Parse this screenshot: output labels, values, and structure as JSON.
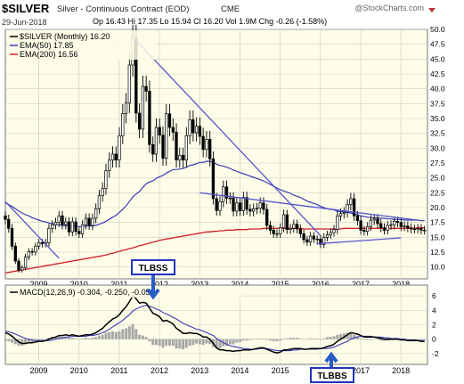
{
  "header": {
    "symbol": "$SILVER",
    "name": "Silver - Continuous Contract (EOD)",
    "exchange": "CME",
    "watermark": "@StockCharts.com",
    "date": "29-Jun-2018",
    "quote": "Op 16.43 Hi 17.35 Lo 15.94 Cl 16.20 Vol 1.9M Chg -0.26 (-1.58%)"
  },
  "legend": {
    "price": "$SILVER (Monthly) 16.20",
    "ema50": "EMA(50) 17.85",
    "ema200": "EMA(200) 16.56",
    "macd": "MACD(12,26,9) -0.304, -0.250, -0.053"
  },
  "annotations": {
    "top": "TLBSS",
    "bottom": "TLBBS"
  },
  "colors": {
    "panel_bg": "#fdfde8",
    "grid": "#cfcfcf",
    "candle": "#000000",
    "ema50": "#3b3bb8",
    "ema200": "#d0202a",
    "trendline": "#5555cc",
    "hist": "#a8a8a8",
    "label_box": "#2233bb"
  },
  "chart_data": [
    {
      "type": "candlestick",
      "x_axis": [
        "2009",
        "2010",
        "2011",
        "2012",
        "2013",
        "2014",
        "2015",
        "2016",
        "2017",
        "2018"
      ],
      "y_ticks": [
        "10.0",
        "12.5",
        "15.0",
        "17.5",
        "20.0",
        "22.5",
        "25.0",
        "27.5",
        "30.0",
        "32.5",
        "35.0",
        "37.5",
        "40.0",
        "42.5",
        "45.0",
        "47.5",
        "50.0"
      ],
      "x_start": 2008.17,
      "ylim": [
        8,
        50
      ],
      "close": [
        18.0,
        16.5,
        13.5,
        11.0,
        9.5,
        9.9,
        11.7,
        12.6,
        12.5,
        13.5,
        14.1,
        13.9,
        14.1,
        16.5,
        17.1,
        17.5,
        18.6,
        17.1,
        17.6,
        15.9,
        17.6,
        16.0,
        15.6,
        17.1,
        18.2,
        17.0,
        18.2,
        19.8,
        22.0,
        23.2,
        26.2,
        28.0,
        29.0,
        28.0,
        32.1,
        35.8,
        37.6,
        44.0,
        48.6,
        35.9,
        33.2,
        40.4,
        39.6,
        30.6,
        29.0,
        33.5,
        32.2,
        28.3,
        35.8,
        33.5,
        32.7,
        28.0,
        28.8,
        28.0,
        32.1,
        34.8,
        32.6,
        33.7,
        32.0,
        29.8,
        31.5,
        28.2,
        21.5,
        19.5,
        21.0,
        23.5,
        21.6,
        21.6,
        19.4,
        20.8,
        19.5,
        21.7,
        19.7,
        19.4,
        19.8,
        19.9,
        20.8,
        19.7,
        17.0,
        16.2,
        15.6,
        15.6,
        16.6,
        18.8,
        16.3,
        16.5,
        17.2,
        16.4,
        15.6,
        14.6,
        14.2,
        15.2,
        14.7,
        14.7,
        13.8,
        15.0,
        15.4,
        15.8,
        16.3,
        18.6,
        19.0,
        19.2,
        20.5,
        21.5,
        18.6,
        17.8,
        16.2,
        16.0,
        16.8,
        17.9,
        18.1,
        17.3,
        16.6,
        16.2,
        17.0,
        17.1,
        17.7,
        17.5,
        16.8,
        16.9,
        16.6,
        16.4,
        16.4,
        16.5,
        16.2,
        16.2
      ],
      "series": [
        {
          "name": "EMA(50)",
          "values": [
            20.8,
            20.5,
            20.2,
            19.8,
            19.4,
            19.1,
            18.8,
            18.6,
            18.3,
            18.1,
            17.9,
            17.7,
            17.6,
            17.4,
            17.3,
            17.2,
            17.1,
            17.0,
            17.0,
            16.9,
            16.9,
            16.9,
            16.8,
            16.8,
            16.9,
            16.9,
            16.9,
            17.0,
            17.2,
            17.4,
            17.7,
            18.0,
            18.4,
            18.7,
            19.2,
            19.7,
            20.3,
            21.0,
            21.8,
            22.3,
            22.7,
            23.4,
            24.0,
            24.3,
            24.5,
            24.9,
            25.2,
            25.4,
            25.8,
            26.1,
            26.4,
            26.4,
            26.5,
            26.6,
            26.8,
            27.1,
            27.2,
            27.4,
            27.6,
            27.6,
            27.8,
            27.8,
            27.6,
            27.3,
            27.1,
            27.0,
            26.8,
            26.6,
            26.3,
            26.1,
            25.9,
            25.7,
            25.5,
            25.3,
            25.1,
            24.9,
            24.7,
            24.5,
            24.2,
            23.9,
            23.6,
            23.3,
            23.0,
            22.8,
            22.6,
            22.4,
            22.1,
            21.9,
            21.7,
            21.4,
            21.1,
            20.9,
            20.7,
            20.5,
            20.2,
            20.0,
            19.8,
            19.7,
            19.6,
            19.4,
            19.3,
            19.3,
            19.2,
            19.1,
            18.9,
            18.8,
            18.6,
            18.5,
            18.4,
            18.3,
            18.3,
            18.3,
            18.2,
            18.2,
            18.1,
            18.1,
            18.0,
            18.0,
            18.0,
            17.9,
            17.9,
            17.9,
            17.9,
            17.9,
            17.8,
            17.8
          ]
        },
        {
          "name": "EMA(200)",
          "values": [
            9.0,
            9.1,
            9.2,
            9.3,
            9.4,
            9.5,
            9.6,
            9.7,
            9.8,
            9.9,
            10.0,
            10.1,
            10.2,
            10.3,
            10.4,
            10.5,
            10.6,
            10.7,
            10.8,
            10.9,
            11.0,
            11.1,
            11.2,
            11.3,
            11.4,
            11.5,
            11.6,
            11.7,
            11.8,
            11.9,
            12.0,
            12.2,
            12.3,
            12.5,
            12.6,
            12.8,
            12.9,
            13.1,
            13.2,
            13.4,
            13.6,
            13.7,
            13.9,
            14.0,
            14.2,
            14.3,
            14.5,
            14.6,
            14.7,
            14.8,
            14.9,
            15.0,
            15.1,
            15.2,
            15.3,
            15.4,
            15.5,
            15.6,
            15.7,
            15.8,
            15.9,
            15.9,
            16.0,
            16.0,
            16.1,
            16.1,
            16.2,
            16.2,
            16.2,
            16.3,
            16.3,
            16.3,
            16.3,
            16.4,
            16.4,
            16.4,
            16.4,
            16.5,
            16.5,
            16.5,
            16.5,
            16.5,
            16.5,
            16.5,
            16.5,
            16.5,
            16.5,
            16.5,
            16.5,
            16.4,
            16.4,
            16.4,
            16.4,
            16.4,
            16.4,
            16.4,
            16.4,
            16.4,
            16.4,
            16.4,
            16.4,
            16.5,
            16.5,
            16.5,
            16.5,
            16.5,
            16.5,
            16.5,
            16.5,
            16.5,
            16.5,
            16.5,
            16.5,
            16.5,
            16.5,
            16.5,
            16.5,
            16.5,
            16.5,
            16.5,
            16.5,
            16.5,
            16.5,
            16.6,
            16.6,
            16.6
          ]
        }
      ],
      "trendlines": [
        {
          "from": [
            2008.17,
            21.0
          ],
          "to": [
            2009.5,
            11.5
          ]
        },
        {
          "from": [
            2011.3,
            49.0
          ],
          "to": [
            2016.0,
            15.3
          ]
        },
        {
          "from": [
            2013.0,
            22.5
          ],
          "to": [
            2018.4,
            17.9
          ]
        },
        {
          "from": [
            2015.9,
            13.9
          ],
          "to": [
            2018.0,
            14.9
          ]
        }
      ]
    },
    {
      "type": "line",
      "name": "MACD(12,26,9)",
      "x_start": 2008.17,
      "y_ticks": [
        "6",
        "4",
        "2",
        "0",
        "-2"
      ],
      "ylim": [
        -3.5,
        7.5
      ],
      "series": [
        {
          "name": "MACD",
          "values": [
            0.9,
            0.7,
            0.4,
            0.0,
            -0.4,
            -0.6,
            -0.6,
            -0.5,
            -0.5,
            -0.4,
            -0.3,
            -0.3,
            -0.2,
            0.0,
            0.2,
            0.3,
            0.5,
            0.5,
            0.6,
            0.5,
            0.6,
            0.5,
            0.4,
            0.5,
            0.6,
            0.6,
            0.7,
            0.9,
            1.2,
            1.5,
            2.0,
            2.4,
            2.8,
            3.0,
            3.4,
            4.0,
            4.5,
            5.2,
            6.0,
            5.6,
            5.0,
            5.1,
            5.0,
            4.3,
            3.6,
            3.4,
            3.1,
            2.5,
            2.6,
            2.4,
            2.1,
            1.5,
            1.2,
            0.8,
            0.8,
            0.9,
            0.8,
            0.8,
            0.6,
            0.3,
            0.3,
            0.0,
            -0.6,
            -1.2,
            -1.5,
            -1.5,
            -1.6,
            -1.6,
            -1.7,
            -1.6,
            -1.6,
            -1.5,
            -1.5,
            -1.5,
            -1.4,
            -1.3,
            -1.2,
            -1.2,
            -1.4,
            -1.6,
            -1.8,
            -1.9,
            -1.8,
            -1.5,
            -1.5,
            -1.4,
            -1.3,
            -1.3,
            -1.3,
            -1.4,
            -1.4,
            -1.3,
            -1.3,
            -1.3,
            -1.3,
            -1.2,
            -1.0,
            -0.9,
            -0.7,
            -0.3,
            0.0,
            0.3,
            0.6,
            0.9,
            0.8,
            0.7,
            0.5,
            0.3,
            0.3,
            0.3,
            0.3,
            0.2,
            0.1,
            0.0,
            0.0,
            0.0,
            0.0,
            0.0,
            -0.1,
            -0.1,
            -0.2,
            -0.2,
            -0.2,
            -0.2,
            -0.3,
            -0.3
          ]
        },
        {
          "name": "Signal",
          "values": [
            1.1,
            1.0,
            0.9,
            0.7,
            0.5,
            0.3,
            0.1,
            0.0,
            -0.1,
            -0.2,
            -0.2,
            -0.2,
            -0.2,
            -0.2,
            -0.1,
            0.0,
            0.1,
            0.2,
            0.3,
            0.3,
            0.4,
            0.4,
            0.4,
            0.4,
            0.4,
            0.5,
            0.5,
            0.6,
            0.7,
            0.9,
            1.1,
            1.4,
            1.7,
            2.0,
            2.3,
            2.6,
            3.0,
            3.4,
            3.9,
            4.2,
            4.4,
            4.6,
            4.7,
            4.6,
            4.4,
            4.2,
            4.0,
            3.7,
            3.5,
            3.3,
            3.0,
            2.8,
            2.5,
            2.2,
            2.0,
            1.8,
            1.6,
            1.4,
            1.3,
            1.1,
            0.9,
            0.7,
            0.5,
            0.1,
            -0.2,
            -0.5,
            -0.7,
            -0.9,
            -1.0,
            -1.1,
            -1.2,
            -1.3,
            -1.3,
            -1.4,
            -1.4,
            -1.4,
            -1.3,
            -1.3,
            -1.3,
            -1.4,
            -1.5,
            -1.6,
            -1.6,
            -1.6,
            -1.6,
            -1.6,
            -1.5,
            -1.5,
            -1.4,
            -1.4,
            -1.4,
            -1.4,
            -1.4,
            -1.4,
            -1.3,
            -1.3,
            -1.3,
            -1.2,
            -1.1,
            -0.9,
            -0.7,
            -0.5,
            -0.3,
            0.0,
            0.2,
            0.3,
            0.4,
            0.4,
            0.4,
            0.4,
            0.3,
            0.3,
            0.3,
            0.2,
            0.2,
            0.1,
            0.1,
            0.1,
            0.0,
            0.0,
            -0.1,
            -0.1,
            -0.1,
            -0.2,
            -0.2,
            -0.2
          ]
        }
      ]
    }
  ]
}
